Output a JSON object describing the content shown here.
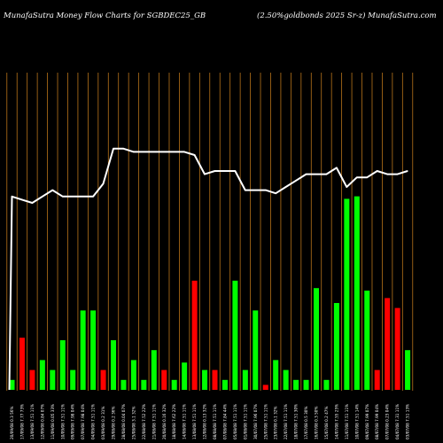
{
  "header": {
    "left": "MunafaSutra  Money Flow  Charts for SGBDEC25_GB",
    "right": "(2.50%goldbonds 2025 Sr-z) MunafaSutra.com"
  },
  "colors": {
    "background": "#000000",
    "grid": "#b8741a",
    "line": "#ffffff",
    "positive": "#00ff00",
    "negative": "#ff0000"
  },
  "chart_data": {
    "type": "bar",
    "bars_scale_max": 100,
    "line_scale_max": 100,
    "categories": [
      "20/09/08 0.3 56%",
      "17/09/08 7.77 73%",
      "13/09/08 7.51 11%",
      "12/09/08 0.84 07%",
      "11/09/08 0.05 33%",
      "10/09/08 7.51 11%",
      "09/09/08 7.98 04%",
      "07/09/08 7.98 04%",
      "04/09/08 7.51 11%",
      "03/09/08 0.2 31%",
      "29/08/08 0.2 36%",
      "28/08/08 0.04 07%",
      "25/08/08 3.1 32%",
      "22/08/08 7.52 22%",
      "21/08/08 7.51 11%",
      "20/08/08 0.16 32%",
      "18/08/08 7.62 22%",
      "14/08/08 7.51 11%",
      "13/08/08 7.51 11%",
      "12/08/08 0.13 32%",
      "08/08/08 7.51 11%",
      "07/08/08 7.84 44%",
      "05/08/08 7.51 11%",
      "01/08/08 7.51 11%",
      "30/07/08 7.96 07%",
      "25/07/08 7.51 11%",
      "23/07/08 0.1 32%",
      "22/07/08 7.51 11%",
      "18/07/08 7.51 30%",
      "17/07/08 0.5 30%",
      "16/07/08 0.3 50%",
      "15/07/08 0.2 47%",
      "14/07/08 7.55 25%",
      "11/07/08 7.51 11%",
      "10/07/08 7.51 14%",
      "09/07/08 7.99 07%",
      "08/07/08 7.99 04%",
      "07/07/08 0.23 04%",
      "04/07/08 7.31 11%",
      "03/07/08 7.51 13%"
    ],
    "bar_values": [
      4,
      21,
      8,
      12,
      8,
      20,
      8,
      32,
      32,
      8,
      20,
      4,
      12,
      4,
      16,
      8,
      4,
      11,
      44,
      8,
      8,
      4,
      44,
      8,
      32,
      2,
      12,
      8,
      4,
      4,
      41,
      4,
      35,
      77,
      78,
      40,
      8,
      37,
      33,
      16
    ],
    "bar_directions": [
      "up",
      "down",
      "down",
      "up",
      "up",
      "up",
      "up",
      "up",
      "up",
      "down",
      "up",
      "up",
      "up",
      "up",
      "up",
      "down",
      "up",
      "up",
      "down",
      "up",
      "down",
      "up",
      "up",
      "up",
      "up",
      "down",
      "up",
      "up",
      "up",
      "up",
      "up",
      "up",
      "up",
      "up",
      "up",
      "up",
      "down",
      "down",
      "down",
      "up"
    ],
    "line_values": [
      62,
      61,
      60,
      62,
      64,
      62,
      62,
      62,
      62,
      66,
      77,
      77,
      76,
      76,
      76,
      76,
      76,
      76,
      75,
      69,
      70,
      70,
      70,
      64,
      64,
      64,
      63,
      65,
      67,
      69,
      69,
      69,
      71,
      65,
      68,
      68,
      70,
      69,
      69,
      70
    ],
    "grid": true,
    "legend": "none"
  }
}
